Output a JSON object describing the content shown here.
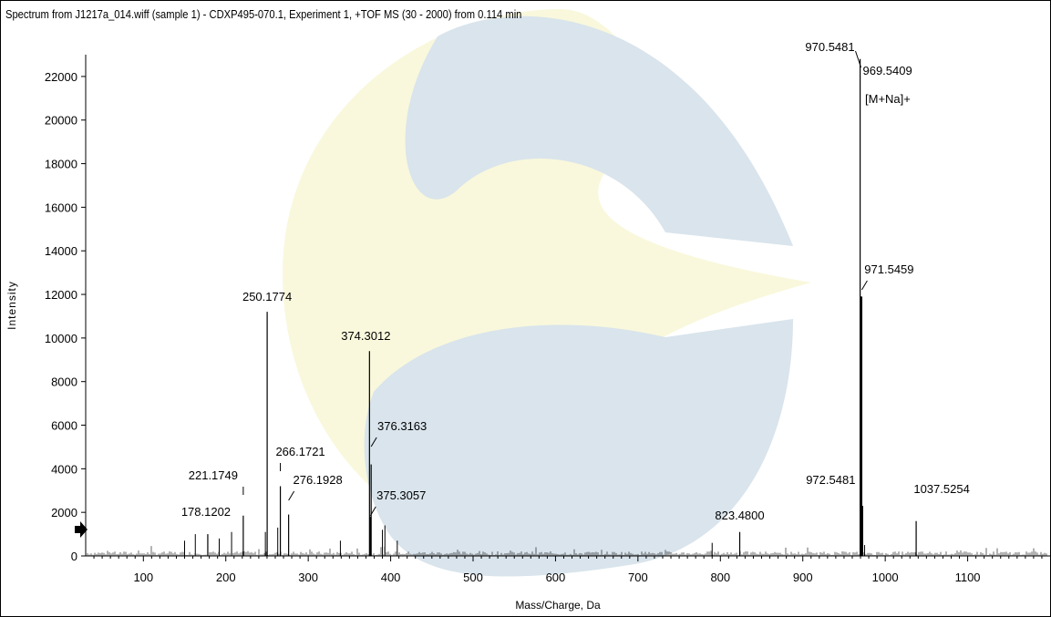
{
  "chart_data": {
    "type": "line",
    "title": "Spectrum from J1217a_014.wiff (sample 1) - CDXP495-070.1, Experiment 1, +TOF MS (30 - 2000) from 0.114 min",
    "xlabel": "Mass/Charge, Da",
    "ylabel": "Intensity",
    "xlim": [
      30,
      1200
    ],
    "ylim": [
      0,
      23000
    ],
    "x_ticks": [
      100,
      200,
      300,
      400,
      500,
      600,
      700,
      800,
      900,
      1000,
      1100
    ],
    "y_ticks": [
      0,
      2000,
      4000,
      6000,
      8000,
      10000,
      12000,
      14000,
      16000,
      18000,
      20000,
      22000
    ],
    "labeled_peaks": [
      {
        "mz": 178.1202,
        "intensity": 1000,
        "label": "178.1202"
      },
      {
        "mz": 221.1749,
        "intensity": 1850,
        "label": "221.1749"
      },
      {
        "mz": 250.1774,
        "intensity": 11200,
        "label": "250.1774"
      },
      {
        "mz": 266.1721,
        "intensity": 3200,
        "label": "266.1721"
      },
      {
        "mz": 276.1928,
        "intensity": 1900,
        "label": "276.1928"
      },
      {
        "mz": 374.3012,
        "intensity": 9400,
        "label": "374.3012"
      },
      {
        "mz": 375.3057,
        "intensity": 1800,
        "label": "375.3057"
      },
      {
        "mz": 376.3163,
        "intensity": 4200,
        "label": "376.3163"
      },
      {
        "mz": 823.48,
        "intensity": 1100,
        "label": "823.4800"
      },
      {
        "mz": 969.5409,
        "intensity": 22800,
        "label": "969.5409"
      },
      {
        "mz": 970.5481,
        "intensity": 11900,
        "label": "970.5481"
      },
      {
        "mz": 971.5459,
        "intensity": 11900,
        "label": "971.5459"
      },
      {
        "mz": 972.5481,
        "intensity": 2300,
        "label": "972.5481"
      },
      {
        "mz": 1037.5254,
        "intensity": 1600,
        "label": "1037.5254"
      }
    ],
    "minor_peaks": [
      {
        "mz": 150,
        "intensity": 700
      },
      {
        "mz": 163,
        "intensity": 1000
      },
      {
        "mz": 192,
        "intensity": 800
      },
      {
        "mz": 207,
        "intensity": 1100
      },
      {
        "mz": 248,
        "intensity": 1100
      },
      {
        "mz": 263,
        "intensity": 1300
      },
      {
        "mz": 339,
        "intensity": 700
      },
      {
        "mz": 390,
        "intensity": 1200
      },
      {
        "mz": 393,
        "intensity": 1400
      },
      {
        "mz": 408,
        "intensity": 700
      },
      {
        "mz": 790,
        "intensity": 600
      },
      {
        "mz": 975,
        "intensity": 500
      }
    ],
    "annotation": "[M+Na]+"
  },
  "colors": {
    "trace": "#000000",
    "watermark_blue": "#d9e4ec",
    "watermark_yellow": "#f9f8dc",
    "marker": "#000000"
  },
  "icons": {
    "origin_marker": "right-arrow-icon"
  }
}
